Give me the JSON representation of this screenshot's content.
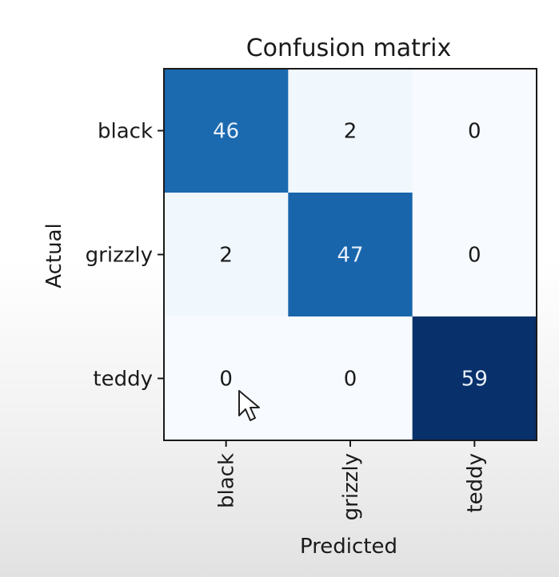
{
  "chart_data": {
    "type": "heatmap",
    "title": "Confusion matrix",
    "xlabel": "Predicted",
    "ylabel": "Actual",
    "x_categories": [
      "black",
      "grizzly",
      "teddy"
    ],
    "y_categories": [
      "black",
      "grizzly",
      "teddy"
    ],
    "values": [
      [
        46,
        2,
        0
      ],
      [
        2,
        47,
        0
      ],
      [
        0,
        0,
        59
      ]
    ],
    "colormap": "Blues",
    "range": [
      0,
      59
    ],
    "colors": {
      "low": "#f7fbff",
      "high": "#08306b"
    }
  }
}
